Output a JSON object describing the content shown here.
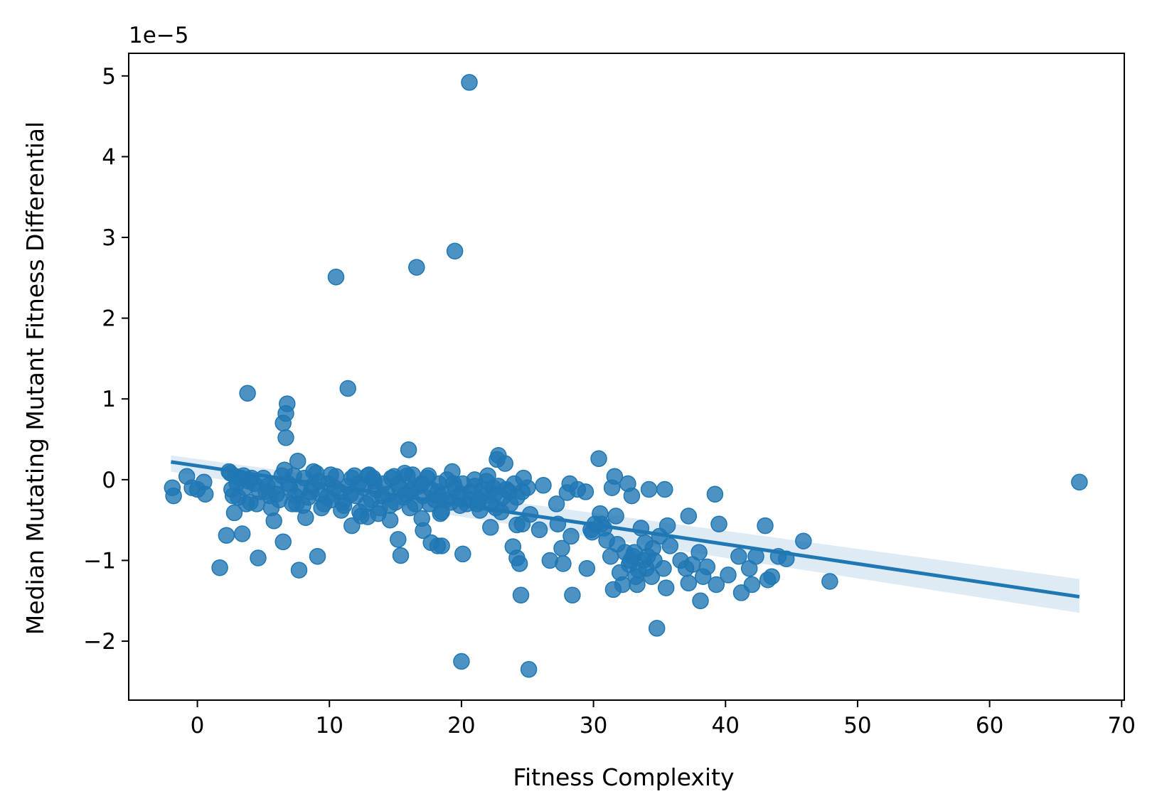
{
  "chart_data": {
    "type": "scatter",
    "xlabel": "Fitness Complexity",
    "ylabel": "Median Mutating Mutant Fitness Differential",
    "y_offset_label": "1e−5",
    "xlim": [
      -5.2,
      70.2
    ],
    "ylim": [
      -2.73,
      5.28
    ],
    "x_ticks": [
      0,
      10,
      20,
      30,
      40,
      50,
      60,
      70
    ],
    "x_tick_labels": [
      "0",
      "10",
      "20",
      "30",
      "40",
      "50",
      "60",
      "70"
    ],
    "y_ticks": [
      -2,
      -1,
      0,
      1,
      2,
      3,
      4,
      5
    ],
    "y_tick_labels": [
      "−2",
      "−1",
      "0",
      "1",
      "2",
      "3",
      "4",
      "5"
    ],
    "grid": false,
    "legend": "none",
    "colors": {
      "points": "#1f77b4",
      "line": "#1f77b4",
      "ci_band": "#1f77b4"
    },
    "regression": {
      "x": [
        -2.0,
        66.8
      ],
      "y": [
        0.22,
        -1.45
      ],
      "ci_lower": [
        0.1,
        -1.65
      ],
      "ci_upper": [
        0.3,
        -1.23
      ]
    },
    "series": [
      {
        "points": [
          [
            20.6,
            4.92
          ],
          [
            19.5,
            2.83
          ],
          [
            16.6,
            2.63
          ],
          [
            10.5,
            2.51
          ],
          [
            11.4,
            1.13
          ],
          [
            3.8,
            1.07
          ],
          [
            6.8,
            0.94
          ],
          [
            6.7,
            0.82
          ],
          [
            6.5,
            0.7
          ],
          [
            6.7,
            0.52
          ],
          [
            16.0,
            0.37
          ],
          [
            22.8,
            0.3
          ],
          [
            30.4,
            0.26
          ],
          [
            7.6,
            0.23
          ],
          [
            22.7,
            0.25
          ],
          [
            66.8,
            -0.03
          ],
          [
            -1.9,
            -0.1
          ],
          [
            -1.8,
            -0.2
          ],
          [
            -0.8,
            0.04
          ],
          [
            -0.4,
            -0.1
          ],
          [
            0.0,
            -0.12
          ],
          [
            0.5,
            -0.03
          ],
          [
            0.6,
            -0.18
          ],
          [
            1.7,
            -1.09
          ],
          [
            2.2,
            -0.69
          ],
          [
            2.5,
            0.08
          ],
          [
            2.7,
            -0.2
          ],
          [
            2.8,
            -0.41
          ],
          [
            3.4,
            -0.67
          ],
          [
            4.6,
            -0.97
          ],
          [
            5.2,
            -0.15
          ],
          [
            5.8,
            -0.51
          ],
          [
            6.5,
            -0.77
          ],
          [
            7.7,
            -1.12
          ],
          [
            8.2,
            -0.47
          ],
          [
            9.1,
            -0.95
          ],
          [
            11.7,
            -0.57
          ],
          [
            12.9,
            -0.46
          ],
          [
            14.6,
            -0.5
          ],
          [
            15.2,
            -0.74
          ],
          [
            15.4,
            -0.94
          ],
          [
            17.0,
            -0.48
          ],
          [
            17.1,
            -0.63
          ],
          [
            17.7,
            -0.78
          ],
          [
            18.2,
            -0.82
          ],
          [
            18.5,
            -0.82
          ],
          [
            18.4,
            -0.42
          ],
          [
            20.1,
            -0.92
          ],
          [
            20.0,
            -2.25
          ],
          [
            25.1,
            -2.35
          ],
          [
            22.2,
            -0.59
          ],
          [
            23.9,
            -0.83
          ],
          [
            24.2,
            -0.97
          ],
          [
            24.4,
            -1.04
          ],
          [
            24.5,
            -1.43
          ],
          [
            24.2,
            -0.56
          ],
          [
            24.6,
            -0.55
          ],
          [
            25.2,
            -0.43
          ],
          [
            25.9,
            -0.62
          ],
          [
            26.2,
            -0.07
          ],
          [
            26.7,
            -1.0
          ],
          [
            27.2,
            -0.3
          ],
          [
            27.3,
            -0.55
          ],
          [
            27.6,
            -0.85
          ],
          [
            27.7,
            -1.04
          ],
          [
            28.0,
            -0.16
          ],
          [
            28.2,
            -0.05
          ],
          [
            28.3,
            -0.7
          ],
          [
            28.4,
            -1.43
          ],
          [
            28.8,
            -0.12
          ],
          [
            29.4,
            -0.15
          ],
          [
            29.5,
            -1.1
          ],
          [
            29.9,
            -0.65
          ],
          [
            30.5,
            -0.42
          ],
          [
            30.6,
            -0.55
          ],
          [
            30.8,
            -0.6
          ],
          [
            31.0,
            -0.75
          ],
          [
            31.3,
            -0.95
          ],
          [
            31.5,
            -1.36
          ],
          [
            31.7,
            -0.45
          ],
          [
            31.8,
            -0.8
          ],
          [
            32.0,
            -1.15
          ],
          [
            32.2,
            -1.3
          ],
          [
            32.4,
            -0.9
          ],
          [
            32.7,
            -1.05
          ],
          [
            32.9,
            -0.2
          ],
          [
            33.0,
            -0.95
          ],
          [
            33.2,
            -1.2
          ],
          [
            33.3,
            -1.3
          ],
          [
            33.6,
            -0.6
          ],
          [
            33.8,
            -1.0
          ],
          [
            34.0,
            -1.1
          ],
          [
            34.2,
            -0.12
          ],
          [
            34.4,
            -1.2
          ],
          [
            34.5,
            -0.85
          ],
          [
            34.8,
            -1.84
          ],
          [
            35.0,
            -0.7
          ],
          [
            35.3,
            -1.1
          ],
          [
            35.4,
            -0.12
          ],
          [
            35.5,
            -1.34
          ],
          [
            35.6,
            -0.57
          ],
          [
            35.8,
            -0.82
          ],
          [
            36.6,
            -1.0
          ],
          [
            37.0,
            -1.1
          ],
          [
            37.2,
            -1.28
          ],
          [
            37.2,
            -0.45
          ],
          [
            37.5,
            -1.05
          ],
          [
            38.0,
            -0.9
          ],
          [
            38.1,
            -1.5
          ],
          [
            38.3,
            -1.2
          ],
          [
            38.6,
            -1.08
          ],
          [
            39.2,
            -0.18
          ],
          [
            39.3,
            -1.3
          ],
          [
            39.5,
            -0.55
          ],
          [
            40.2,
            -1.18
          ],
          [
            41.0,
            -0.95
          ],
          [
            41.2,
            -1.4
          ],
          [
            41.8,
            -1.1
          ],
          [
            42.0,
            -1.3
          ],
          [
            42.3,
            -0.95
          ],
          [
            43.0,
            -0.57
          ],
          [
            43.2,
            -1.24
          ],
          [
            43.5,
            -1.2
          ],
          [
            44.0,
            -0.95
          ],
          [
            44.6,
            -0.98
          ],
          [
            45.9,
            -0.76
          ],
          [
            47.9,
            -1.26
          ],
          [
            31.6,
            0.04
          ],
          [
            31.4,
            -0.1
          ],
          [
            32.6,
            -0.05
          ],
          [
            30.1,
            -0.55
          ],
          [
            29.8,
            -0.62
          ],
          [
            34.6,
            -1.0
          ],
          [
            33.9,
            -0.78
          ],
          [
            33.4,
            -1.12
          ],
          [
            32.8,
            -1.0
          ],
          [
            33.1,
            -0.9
          ],
          [
            34.1,
            -0.95
          ],
          [
            2.4,
            0.1
          ],
          [
            3.0,
            -0.05
          ],
          [
            3.3,
            0.02
          ],
          [
            3.6,
            -0.1
          ],
          [
            4.0,
            -0.28
          ],
          [
            4.3,
            -0.05
          ],
          [
            4.7,
            -0.15
          ],
          [
            5.0,
            0.02
          ],
          [
            5.5,
            -0.2
          ],
          [
            5.9,
            -0.08
          ],
          [
            6.2,
            -0.25
          ],
          [
            6.6,
            0.12
          ],
          [
            7.0,
            -0.1
          ],
          [
            7.3,
            0.05
          ],
          [
            7.5,
            -0.3
          ],
          [
            7.8,
            -0.12
          ],
          [
            8.1,
            0.02
          ],
          [
            8.4,
            -0.22
          ],
          [
            8.7,
            -0.08
          ],
          [
            9.0,
            0.08
          ],
          [
            9.3,
            -0.18
          ],
          [
            9.6,
            -0.3
          ],
          [
            9.9,
            -0.05
          ],
          [
            10.2,
            -0.25
          ],
          [
            10.5,
            0.04
          ],
          [
            10.8,
            -0.15
          ],
          [
            11.1,
            -0.32
          ],
          [
            11.4,
            -0.08
          ],
          [
            11.7,
            0.02
          ],
          [
            12.0,
            -0.2
          ],
          [
            12.3,
            -0.4
          ],
          [
            12.6,
            -0.1
          ],
          [
            12.9,
            0.05
          ],
          [
            13.2,
            -0.25
          ],
          [
            13.5,
            -0.12
          ],
          [
            13.8,
            -0.35
          ],
          [
            14.1,
            -0.05
          ],
          [
            14.4,
            -0.18
          ],
          [
            14.7,
            0.02
          ],
          [
            15.0,
            -0.28
          ],
          [
            15.3,
            -0.1
          ],
          [
            15.6,
            -0.22
          ],
          [
            15.9,
            0.05
          ],
          [
            16.2,
            -0.15
          ],
          [
            16.5,
            -0.3
          ],
          [
            16.8,
            -0.08
          ],
          [
            17.1,
            -0.2
          ],
          [
            17.4,
            0.02
          ],
          [
            17.7,
            -0.12
          ],
          [
            18.0,
            -0.25
          ],
          [
            18.3,
            -0.05
          ],
          [
            18.6,
            -0.18
          ],
          [
            18.9,
            0.0
          ],
          [
            19.2,
            -0.28
          ],
          [
            19.5,
            -0.1
          ],
          [
            19.8,
            -0.2
          ],
          [
            20.1,
            -0.05
          ],
          [
            20.4,
            -0.3
          ],
          [
            20.7,
            -0.15
          ],
          [
            21.0,
            -0.08
          ],
          [
            21.3,
            -0.25
          ],
          [
            21.6,
            -0.12
          ],
          [
            21.9,
            -0.02
          ],
          [
            22.2,
            -0.3
          ],
          [
            22.5,
            -0.18
          ],
          [
            22.8,
            -0.08
          ],
          [
            23.1,
            -0.22
          ],
          [
            23.4,
            -0.12
          ],
          [
            23.7,
            -0.3
          ],
          [
            24.0,
            -0.05
          ],
          [
            24.6,
            -0.15
          ],
          [
            25.0,
            -0.1
          ],
          [
            2.6,
            -0.12
          ],
          [
            3.1,
            -0.22
          ],
          [
            3.9,
            -0.02
          ],
          [
            4.5,
            -0.3
          ],
          [
            5.3,
            -0.08
          ],
          [
            6.0,
            -0.18
          ],
          [
            6.9,
            -0.05
          ],
          [
            7.4,
            -0.2
          ],
          [
            8.0,
            -0.32
          ],
          [
            8.6,
            -0.15
          ],
          [
            9.2,
            -0.02
          ],
          [
            9.8,
            -0.22
          ],
          [
            10.4,
            -0.1
          ],
          [
            11.0,
            -0.28
          ],
          [
            11.6,
            -0.18
          ],
          [
            12.2,
            -0.05
          ],
          [
            12.8,
            -0.3
          ],
          [
            13.4,
            -0.02
          ],
          [
            14.0,
            -0.2
          ],
          [
            14.6,
            -0.32
          ],
          [
            15.2,
            -0.05
          ],
          [
            15.8,
            -0.18
          ],
          [
            16.4,
            -0.1
          ],
          [
            17.0,
            -0.05
          ],
          [
            17.6,
            -0.3
          ],
          [
            18.2,
            -0.15
          ],
          [
            18.8,
            -0.25
          ],
          [
            19.4,
            -0.05
          ],
          [
            20.0,
            -0.18
          ],
          [
            20.6,
            -0.25
          ],
          [
            21.2,
            -0.3
          ],
          [
            21.8,
            -0.2
          ],
          [
            22.4,
            -0.1
          ],
          [
            23.0,
            -0.4
          ],
          [
            23.6,
            -0.15
          ],
          [
            24.2,
            -0.22
          ],
          [
            19.3,
            0.1
          ],
          [
            17.5,
            0.05
          ],
          [
            15.7,
            0.08
          ],
          [
            13.3,
            0.02
          ],
          [
            11.9,
            0.05
          ],
          [
            10.1,
            0.06
          ],
          [
            8.8,
            0.1
          ],
          [
            6.4,
            0.05
          ],
          [
            4.1,
            0.02
          ],
          [
            3.5,
            0.05
          ],
          [
            2.9,
            0.04
          ],
          [
            23.3,
            0.2
          ],
          [
            24.7,
            0.02
          ],
          [
            22.0,
            0.05
          ],
          [
            21.0,
            0.0
          ],
          [
            16.3,
            0.06
          ],
          [
            14.9,
            0.04
          ],
          [
            13.0,
            0.06
          ],
          [
            12.4,
            -0.45
          ],
          [
            10.9,
            -0.38
          ],
          [
            9.4,
            -0.35
          ],
          [
            7.2,
            -0.3
          ],
          [
            5.6,
            -0.35
          ],
          [
            3.7,
            -0.3
          ],
          [
            13.7,
            -0.42
          ],
          [
            16.1,
            -0.35
          ],
          [
            18.5,
            -0.4
          ],
          [
            21.4,
            -0.38
          ],
          [
            19.9,
            -0.32
          ],
          [
            22.6,
            -0.35
          ]
        ]
      }
    ]
  }
}
